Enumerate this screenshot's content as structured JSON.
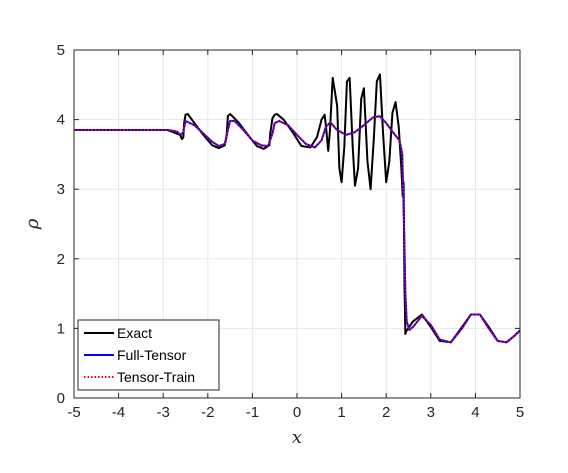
{
  "chart_data": {
    "type": "line",
    "title": "",
    "xlabel": "x",
    "ylabel": "ρ",
    "xlim": [
      -5,
      5
    ],
    "ylim": [
      0,
      5
    ],
    "xticks": [
      "-5",
      "-4",
      "-3",
      "-2",
      "-1",
      "0",
      "1",
      "2",
      "3",
      "4",
      "5"
    ],
    "yticks": [
      "0",
      "1",
      "2",
      "3",
      "4",
      "5"
    ],
    "grid": true,
    "legend_position": "bottom-left",
    "series": [
      {
        "name": "Exact",
        "color": "#000000",
        "style": "solid",
        "x": [
          -5,
          -2.9,
          -2.62,
          -2.58,
          -2.55,
          -2.53,
          -2.5,
          -2.45,
          -2.3,
          -2.1,
          -1.9,
          -1.75,
          -1.62,
          -1.58,
          -1.55,
          -1.5,
          -1.45,
          -1.3,
          -1.1,
          -0.9,
          -0.75,
          -0.62,
          -0.6,
          -0.55,
          -0.5,
          -0.45,
          -0.3,
          -0.1,
          0.1,
          0.3,
          0.45,
          0.55,
          0.62,
          0.65,
          0.7,
          0.74,
          0.8,
          0.9,
          0.95,
          1.0,
          1.06,
          1.12,
          1.18,
          1.25,
          1.3,
          1.37,
          1.44,
          1.5,
          1.58,
          1.65,
          1.72,
          1.79,
          1.86,
          1.93,
          2.0,
          2.07,
          2.14,
          2.21,
          2.28,
          2.34,
          2.37,
          2.39,
          2.41,
          2.43,
          2.45,
          2.6,
          2.8,
          3.0,
          3.2,
          3.45,
          3.7,
          3.9,
          4.1,
          4.3,
          4.5,
          4.7,
          4.85,
          5
        ],
        "y": [
          3.85,
          3.85,
          3.78,
          3.72,
          3.74,
          3.95,
          4.07,
          4.08,
          3.95,
          3.78,
          3.63,
          3.59,
          3.63,
          3.75,
          4.05,
          4.08,
          4.05,
          3.95,
          3.78,
          3.62,
          3.58,
          3.63,
          3.8,
          4.02,
          4.07,
          4.08,
          4.0,
          3.82,
          3.62,
          3.6,
          3.75,
          4.0,
          4.07,
          3.9,
          3.55,
          3.85,
          4.6,
          4.2,
          3.3,
          3.1,
          3.6,
          4.55,
          4.6,
          3.6,
          3.05,
          3.3,
          4.3,
          4.45,
          3.4,
          3.0,
          3.7,
          4.55,
          4.65,
          3.8,
          3.1,
          3.4,
          4.1,
          4.25,
          3.9,
          3.3,
          2.9,
          3.1,
          1.6,
          0.92,
          0.96,
          1.1,
          1.2,
          1.02,
          0.82,
          0.8,
          1.02,
          1.2,
          1.2,
          1.02,
          0.82,
          0.8,
          0.88,
          0.97
        ]
      },
      {
        "name": "Full-Tensor",
        "color": "#0000ff",
        "style": "solid",
        "x": [
          -5,
          -2.9,
          -2.7,
          -2.6,
          -2.55,
          -2.5,
          -2.3,
          -2.1,
          -1.9,
          -1.75,
          -1.62,
          -1.55,
          -1.5,
          -1.4,
          -1.2,
          -1.0,
          -0.8,
          -0.65,
          -0.55,
          -0.5,
          -0.4,
          -0.2,
          0.0,
          0.2,
          0.4,
          0.55,
          0.65,
          0.75,
          0.9,
          1.1,
          1.3,
          1.5,
          1.7,
          1.85,
          2.0,
          2.15,
          2.3,
          2.36,
          2.4,
          2.43,
          2.46,
          2.52,
          2.6,
          2.8,
          3.0,
          3.2,
          3.45,
          3.7,
          3.9,
          4.1,
          4.3,
          4.5,
          4.7,
          4.85,
          5
        ],
        "y": [
          3.85,
          3.85,
          3.83,
          3.78,
          3.82,
          3.98,
          3.92,
          3.8,
          3.68,
          3.62,
          3.65,
          3.85,
          3.98,
          3.98,
          3.85,
          3.7,
          3.63,
          3.62,
          3.8,
          3.95,
          3.98,
          3.92,
          3.78,
          3.65,
          3.6,
          3.7,
          3.9,
          3.96,
          3.85,
          3.78,
          3.82,
          3.92,
          4.03,
          4.05,
          3.95,
          3.82,
          3.7,
          3.5,
          2.5,
          1.5,
          1.1,
          0.98,
          1.02,
          1.18,
          1.05,
          0.84,
          0.8,
          1.0,
          1.2,
          1.2,
          1.0,
          0.82,
          0.8,
          0.88,
          0.97
        ]
      },
      {
        "name": "Tensor-Train",
        "color": "#ff0000",
        "style": "dotted",
        "x": [
          -5,
          -2.9,
          -2.7,
          -2.6,
          -2.55,
          -2.5,
          -2.3,
          -2.1,
          -1.9,
          -1.75,
          -1.62,
          -1.55,
          -1.5,
          -1.4,
          -1.2,
          -1.0,
          -0.8,
          -0.65,
          -0.55,
          -0.5,
          -0.4,
          -0.2,
          0.0,
          0.2,
          0.4,
          0.55,
          0.65,
          0.75,
          0.9,
          1.1,
          1.3,
          1.5,
          1.7,
          1.85,
          2.0,
          2.15,
          2.3,
          2.36,
          2.4,
          2.43,
          2.46,
          2.52,
          2.6,
          2.8,
          3.0,
          3.2,
          3.45,
          3.7,
          3.9,
          4.1,
          4.3,
          4.5,
          4.7,
          4.85,
          5
        ],
        "y": [
          3.85,
          3.85,
          3.83,
          3.78,
          3.82,
          3.98,
          3.92,
          3.8,
          3.68,
          3.62,
          3.65,
          3.85,
          3.98,
          3.98,
          3.85,
          3.7,
          3.63,
          3.62,
          3.8,
          3.95,
          3.98,
          3.92,
          3.78,
          3.65,
          3.6,
          3.7,
          3.9,
          3.96,
          3.85,
          3.78,
          3.82,
          3.92,
          4.03,
          4.05,
          3.95,
          3.82,
          3.7,
          3.5,
          2.5,
          1.5,
          1.1,
          0.98,
          1.02,
          1.18,
          1.05,
          0.84,
          0.8,
          1.0,
          1.2,
          1.2,
          1.0,
          0.82,
          0.8,
          0.88,
          0.97
        ]
      }
    ]
  }
}
